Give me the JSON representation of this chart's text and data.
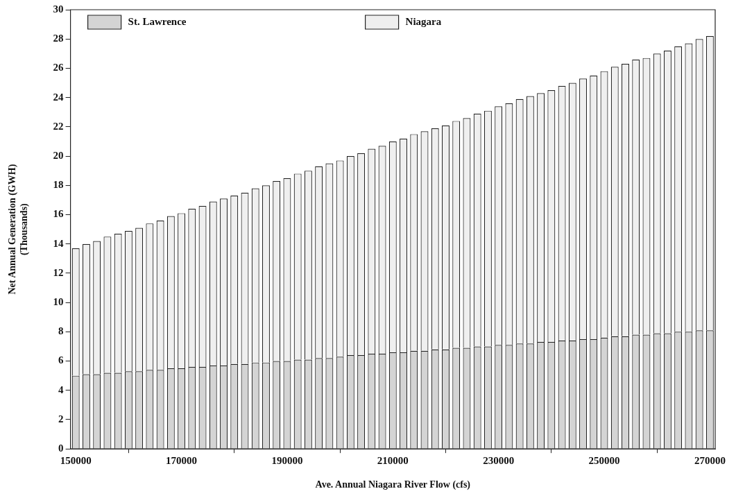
{
  "chart_data": {
    "type": "bar",
    "stacked": true,
    "xlabel": "Ave. Annual Niagara River Flow (cfs)",
    "ylabel": "Net Annual Generation (GWH)\n(Thousands)",
    "categories": [
      "150000",
      null,
      null,
      null,
      null,
      null,
      null,
      null,
      null,
      null,
      "170000",
      null,
      null,
      null,
      null,
      null,
      null,
      null,
      null,
      null,
      "190000",
      null,
      null,
      null,
      null,
      null,
      null,
      null,
      null,
      null,
      "210000",
      null,
      null,
      null,
      null,
      null,
      null,
      null,
      null,
      null,
      "230000",
      null,
      null,
      null,
      null,
      null,
      null,
      null,
      null,
      null,
      "250000",
      null,
      null,
      null,
      null,
      null,
      null,
      null,
      null,
      null,
      "270000"
    ],
    "series": [
      {
        "name": "St. Lawrence",
        "color": "#d4d4d4",
        "values": [
          5.0,
          5.1,
          5.1,
          5.2,
          5.2,
          5.3,
          5.3,
          5.4,
          5.4,
          5.5,
          5.5,
          5.6,
          5.6,
          5.7,
          5.7,
          5.8,
          5.8,
          5.9,
          5.9,
          6.0,
          6.0,
          6.1,
          6.1,
          6.2,
          6.2,
          6.3,
          6.4,
          6.4,
          6.5,
          6.5,
          6.6,
          6.6,
          6.7,
          6.7,
          6.8,
          6.8,
          6.9,
          6.9,
          7.0,
          7.0,
          7.1,
          7.1,
          7.2,
          7.2,
          7.3,
          7.3,
          7.4,
          7.4,
          7.5,
          7.5,
          7.6,
          7.7,
          7.7,
          7.8,
          7.8,
          7.9,
          7.9,
          8.0,
          8.0,
          8.1,
          8.1
        ]
      },
      {
        "name": "Niagara",
        "color": "#efefef",
        "values": [
          8.7,
          8.9,
          9.1,
          9.3,
          9.5,
          9.6,
          9.8,
          10.0,
          10.2,
          10.4,
          10.6,
          10.8,
          11.0,
          11.2,
          11.4,
          11.5,
          11.7,
          11.9,
          12.1,
          12.3,
          12.5,
          12.7,
          12.9,
          13.1,
          13.3,
          13.4,
          13.6,
          13.8,
          14.0,
          14.2,
          14.4,
          14.6,
          14.8,
          15.0,
          15.1,
          15.3,
          15.5,
          15.7,
          15.9,
          16.1,
          16.3,
          16.5,
          16.7,
          16.9,
          17.0,
          17.2,
          17.4,
          17.6,
          17.8,
          18.0,
          18.2,
          18.4,
          18.6,
          18.8,
          18.9,
          19.1,
          19.3,
          19.5,
          19.7,
          19.9,
          20.1
        ]
      }
    ],
    "ylim": [
      0,
      30
    ],
    "yticks": [
      0,
      2,
      4,
      6,
      8,
      10,
      12,
      14,
      16,
      18,
      20,
      22,
      24,
      26,
      28,
      30
    ],
    "grid": false,
    "legend": "top left"
  }
}
